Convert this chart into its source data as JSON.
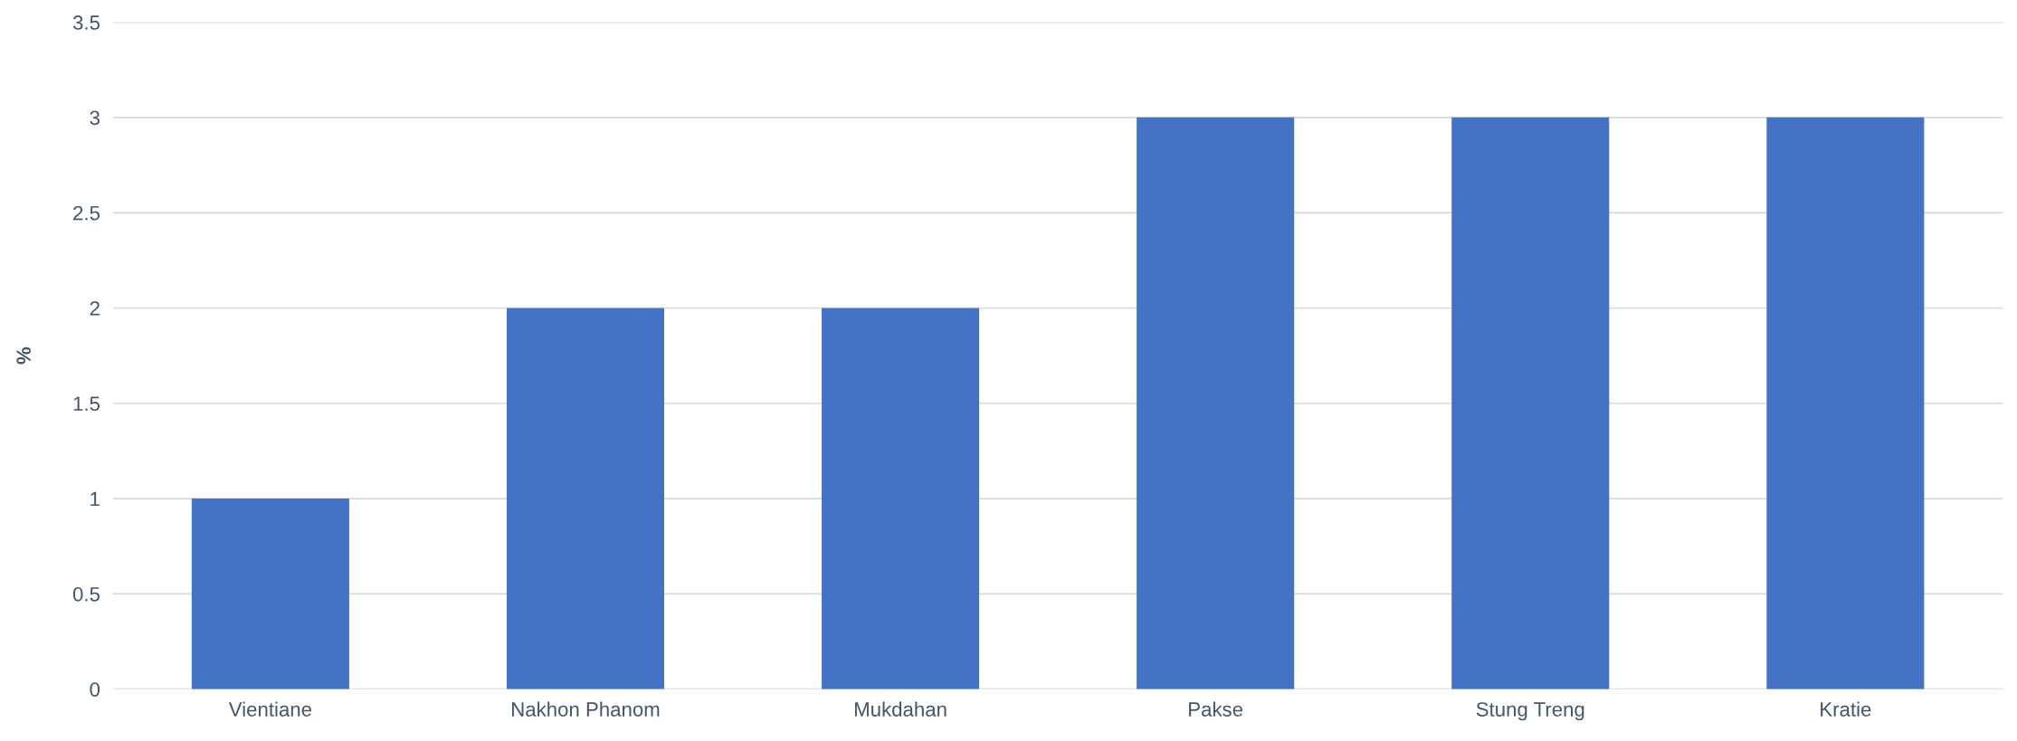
{
  "chart_data": {
    "type": "bar",
    "ylabel": "%",
    "categories": [
      "Vientiane",
      "Nakhon Phanom",
      "Mukdahan",
      "Pakse",
      "Stung Treng",
      "Kratie"
    ],
    "values": [
      1,
      2,
      2,
      3,
      3,
      3
    ],
    "color": "#4472c4",
    "ylim": [
      0,
      3.5
    ],
    "yticks": [
      0,
      0.5,
      1,
      1.5,
      2,
      2.5,
      3,
      3.5
    ],
    "grid": "y"
  }
}
